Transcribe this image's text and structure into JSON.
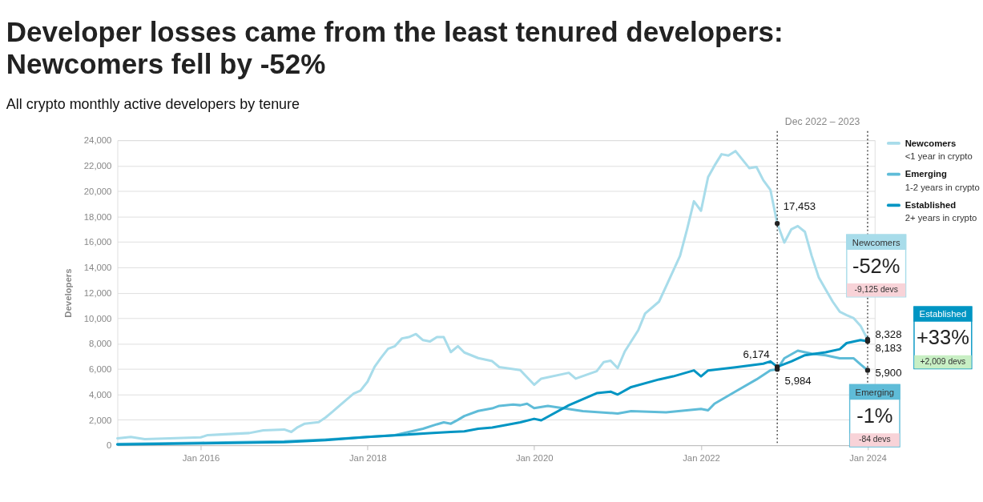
{
  "chart_data": {
    "type": "line",
    "title": "Developer losses came from the least tenured developers:\nNewcomers fell by -52%",
    "subtitle": "All crypto monthly active developers by tenure",
    "ylabel": "Developers",
    "series": [
      {
        "name": "Newcomers",
        "color": "#a8dcea",
        "x": [
          "2015-01",
          "2015-03",
          "2015-05",
          "2016-01",
          "2016-02",
          "2016-04",
          "2016-08",
          "2016-10",
          "2017-01",
          "2017-02",
          "2017-03",
          "2017-04",
          "2017-06",
          "2017-07",
          "2017-08",
          "2017-10",
          "2017-11",
          "2017-12",
          "2018-01",
          "2018-02",
          "2018-03",
          "2018-04",
          "2018-05",
          "2018-06",
          "2018-07",
          "2018-08",
          "2018-09",
          "2018-10",
          "2018-11",
          "2018-12",
          "2019-01",
          "2019-02",
          "2019-03",
          "2019-05",
          "2019-07",
          "2019-08",
          "2019-11",
          "2020-01",
          "2020-02",
          "2020-06",
          "2020-07",
          "2020-10",
          "2020-11",
          "2020-12",
          "2021-01",
          "2021-02",
          "2021-04",
          "2021-05",
          "2021-07",
          "2021-08",
          "2021-10",
          "2021-11",
          "2021-12",
          "2022-01",
          "2022-02",
          "2022-03",
          "2022-04",
          "2022-05",
          "2022-06",
          "2022-08",
          "2022-09",
          "2022-10",
          "2022-11",
          "2022-12",
          "2023-01",
          "2023-02",
          "2023-03",
          "2023-04",
          "2023-05",
          "2023-06",
          "2023-07",
          "2023-08",
          "2023-09",
          "2023-10",
          "2023-11",
          "2023-12",
          "2024-01"
        ],
        "values": [
          550,
          650,
          480,
          620,
          800,
          850,
          960,
          1170,
          1240,
          1050,
          1420,
          1700,
          1820,
          2180,
          2650,
          3590,
          4060,
          4300,
          5000,
          6170,
          6880,
          7590,
          7800,
          8410,
          8510,
          8750,
          8270,
          8160,
          8510,
          8510,
          7330,
          7800,
          7300,
          6860,
          6620,
          6150,
          5910,
          4760,
          5240,
          5700,
          5240,
          5830,
          6550,
          6650,
          6070,
          7380,
          9050,
          10360,
          11300,
          12500,
          14900,
          17000,
          19200,
          18450,
          21100,
          22000,
          22900,
          22800,
          23150,
          21800,
          21900,
          20850,
          20100,
          17453,
          15950,
          17000,
          17250,
          16800,
          14900,
          13200,
          12260,
          11300,
          10500,
          10240,
          10000,
          9400,
          8328
        ]
      },
      {
        "name": "Emerging",
        "color": "#5fbcd8",
        "x": [
          "2015-01",
          "2016-01",
          "2017-01",
          "2017-07",
          "2018-01",
          "2018-05",
          "2018-07",
          "2018-09",
          "2018-11",
          "2018-12",
          "2019-01",
          "2019-02",
          "2019-03",
          "2019-05",
          "2019-07",
          "2019-08",
          "2019-10",
          "2019-11",
          "2019-12",
          "2020-01",
          "2020-03",
          "2020-08",
          "2021-01",
          "2021-03",
          "2021-08",
          "2022-01",
          "2022-02",
          "2022-03",
          "2022-06",
          "2022-09",
          "2022-11",
          "2022-12",
          "2023-01",
          "2023-03",
          "2023-05",
          "2023-07",
          "2023-09",
          "2023-11",
          "2023-12",
          "2024-01"
        ],
        "values": [
          100,
          200,
          300,
          450,
          650,
          800,
          1050,
          1300,
          1650,
          1800,
          1700,
          2000,
          2300,
          2700,
          2900,
          3100,
          3200,
          3150,
          3270,
          2920,
          3100,
          2680,
          2500,
          2680,
          2590,
          2860,
          2750,
          3270,
          4230,
          5180,
          5900,
          5984,
          6840,
          7440,
          7200,
          7080,
          6840,
          6840,
          6360,
          5900
        ]
      },
      {
        "name": "Established",
        "color": "#0095c3",
        "x": [
          "2015-01",
          "2016-01",
          "2017-01",
          "2017-07",
          "2018-01",
          "2018-07",
          "2018-10",
          "2019-01",
          "2019-03",
          "2019-05",
          "2019-07",
          "2019-09",
          "2019-11",
          "2020-01",
          "2020-02",
          "2020-06",
          "2020-10",
          "2020-12",
          "2021-01",
          "2021-03",
          "2021-07",
          "2021-09",
          "2021-12",
          "2022-01",
          "2022-02",
          "2022-06",
          "2022-10",
          "2022-11",
          "2022-12",
          "2023-02",
          "2023-04",
          "2023-07",
          "2023-09",
          "2023-10",
          "2023-12",
          "2024-01"
        ],
        "values": [
          50,
          150,
          250,
          400,
          650,
          850,
          950,
          1050,
          1100,
          1300,
          1400,
          1600,
          1800,
          2080,
          1960,
          3150,
          4100,
          4220,
          3990,
          4580,
          5180,
          5420,
          5890,
          5420,
          5890,
          6130,
          6420,
          6600,
          6174,
          6600,
          7080,
          7320,
          7560,
          8040,
          8280,
          8183
        ]
      }
    ],
    "xlim": [
      "2015-01",
      "2024-02"
    ],
    "xticks": [
      {
        "value": "2016-01",
        "label": "Jan 2016"
      },
      {
        "value": "2018-01",
        "label": "Jan 2018"
      },
      {
        "value": "2020-01",
        "label": "Jan 2020"
      },
      {
        "value": "2022-01",
        "label": "Jan 2022"
      },
      {
        "value": "2024-01",
        "label": "Jan 2024"
      }
    ],
    "ylim": [
      0,
      24000
    ],
    "yticks": [
      0,
      {
        "value": 2000,
        "label": "2,000"
      },
      {
        "value": 4000,
        "label": "4,000"
      },
      {
        "value": 6000,
        "label": "6,000"
      },
      {
        "value": 8000,
        "label": "8,000"
      },
      {
        "value": 10000,
        "label": "10,000"
      },
      {
        "value": 12000,
        "label": "12,000"
      },
      {
        "value": 14000,
        "label": "14,000"
      },
      {
        "value": 16000,
        "label": "16,000"
      },
      {
        "value": 18000,
        "label": "18,000"
      },
      {
        "value": 20000,
        "label": "20,000"
      },
      {
        "value": 22000,
        "label": "22,000"
      },
      {
        "value": 24000,
        "label": "24,000"
      }
    ],
    "grid": "y",
    "legend": "top right",
    "line_style": "solid",
    "marker": "none",
    "ref_lines": [
      {
        "axis": "x",
        "value": "2022-12",
        "label": null,
        "color": "#222222",
        "line_style": "dotted"
      },
      {
        "axis": "x",
        "value": "2024-01",
        "label": null,
        "color": "#222222",
        "line_style": "dotted"
      }
    ],
    "annotations": [
      "Dec 2022 – 2023",
      "<1 year in crypto",
      "1-2 years in crypto",
      "2+ years in crypto",
      {
        "text": "17,453",
        "x": "2022-12",
        "y": 17453
      },
      {
        "text": "6,174",
        "x": "2022-12",
        "y": 6174
      },
      {
        "text": "5,984",
        "x": "2022-12",
        "y": 5984
      },
      {
        "text": "8,328",
        "x": "2024-01",
        "y": 8328
      },
      {
        "text": "8,183",
        "x": "2024-01",
        "y": 8183
      },
      {
        "text": "5,900",
        "x": "2024-01",
        "y": 5900
      },
      "Newcomers",
      "-52%",
      "-9,125 devs",
      "Established",
      "+33%",
      "+2,009 devs",
      "Emerging",
      "-1%",
      "-84 devs"
    ]
  }
}
